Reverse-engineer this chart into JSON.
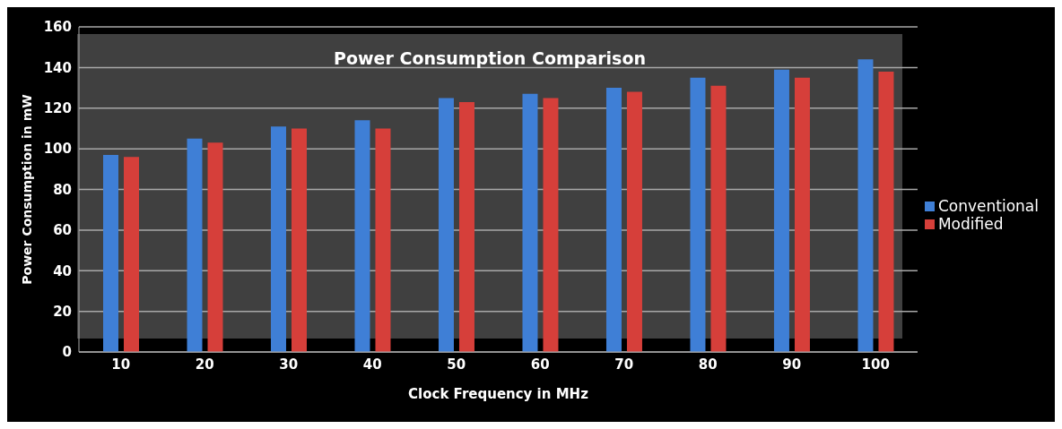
{
  "chart_data": {
    "type": "bar",
    "title": "Power Consumption Comparison",
    "xlabel": "Clock  Frequency in  MHz",
    "ylabel": "Power Consumption in mW",
    "categories": [
      "10",
      "20",
      "30",
      "40",
      "50",
      "60",
      "70",
      "80",
      "90",
      "100"
    ],
    "series": [
      {
        "name": "Conventional",
        "color": "#3f7fd6",
        "values": [
          97,
          105,
          111,
          114,
          125,
          127,
          130,
          135,
          139,
          144
        ]
      },
      {
        "name": "Modified",
        "color": "#d63f3a",
        "values": [
          96,
          103,
          110,
          110,
          123,
          125,
          128,
          131,
          135,
          138
        ]
      }
    ],
    "ylim": [
      0,
      160
    ],
    "yticks": [
      0,
      20,
      40,
      60,
      80,
      100,
      120,
      140,
      160
    ],
    "grid": "y",
    "legend": "right"
  }
}
